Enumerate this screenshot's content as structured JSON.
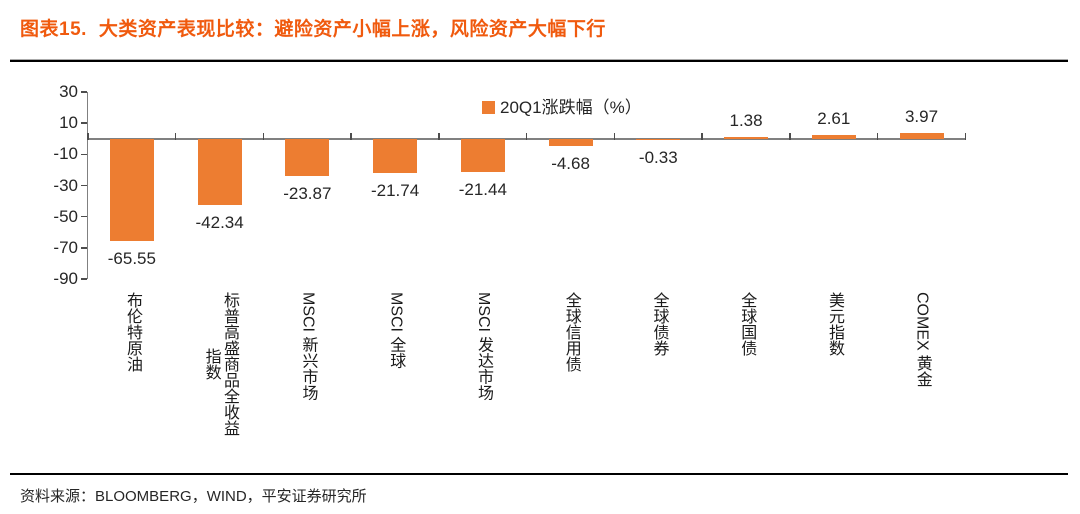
{
  "title": {
    "prefix": "图表15.",
    "text": "大类资产表现比较：避险资产小幅上涨，风险资产大幅下行"
  },
  "colors": {
    "title_orange": "#F05A0E",
    "bar_orange": "#ED7D31",
    "axis_gray": "#808080",
    "text_dark": "#262626"
  },
  "chart_data": {
    "type": "bar",
    "legend": "20Q1涨跌幅（%）",
    "legend_position": "top-center",
    "grid": false,
    "ylim": [
      -90,
      30
    ],
    "yticks": [
      30,
      10,
      -10,
      -30,
      -50,
      -70,
      -90
    ],
    "categories": [
      [
        "布伦特原油"
      ],
      [
        "标普高盛商品全收益",
        "指数"
      ],
      [
        "MSCI 新兴市场"
      ],
      [
        "MSCI 全球"
      ],
      [
        "MSCI 发达市场"
      ],
      [
        "全球信用债"
      ],
      [
        "全球债券"
      ],
      [
        "全球国债"
      ],
      [
        "美元指数"
      ],
      [
        "COMEX 黄金"
      ]
    ],
    "values": [
      -65.55,
      -42.34,
      -23.87,
      -21.74,
      -21.44,
      -4.68,
      -0.33,
      1.38,
      2.61,
      3.97
    ],
    "value_labels": [
      "-65.55",
      "-42.34",
      "-23.87",
      "-21.74",
      "-21.44",
      "-4.68",
      "-0.33",
      "1.38",
      "2.61",
      "3.97"
    ]
  },
  "footer": {
    "source": "资料来源：BLOOMBERG，WIND，平安证券研究所"
  }
}
